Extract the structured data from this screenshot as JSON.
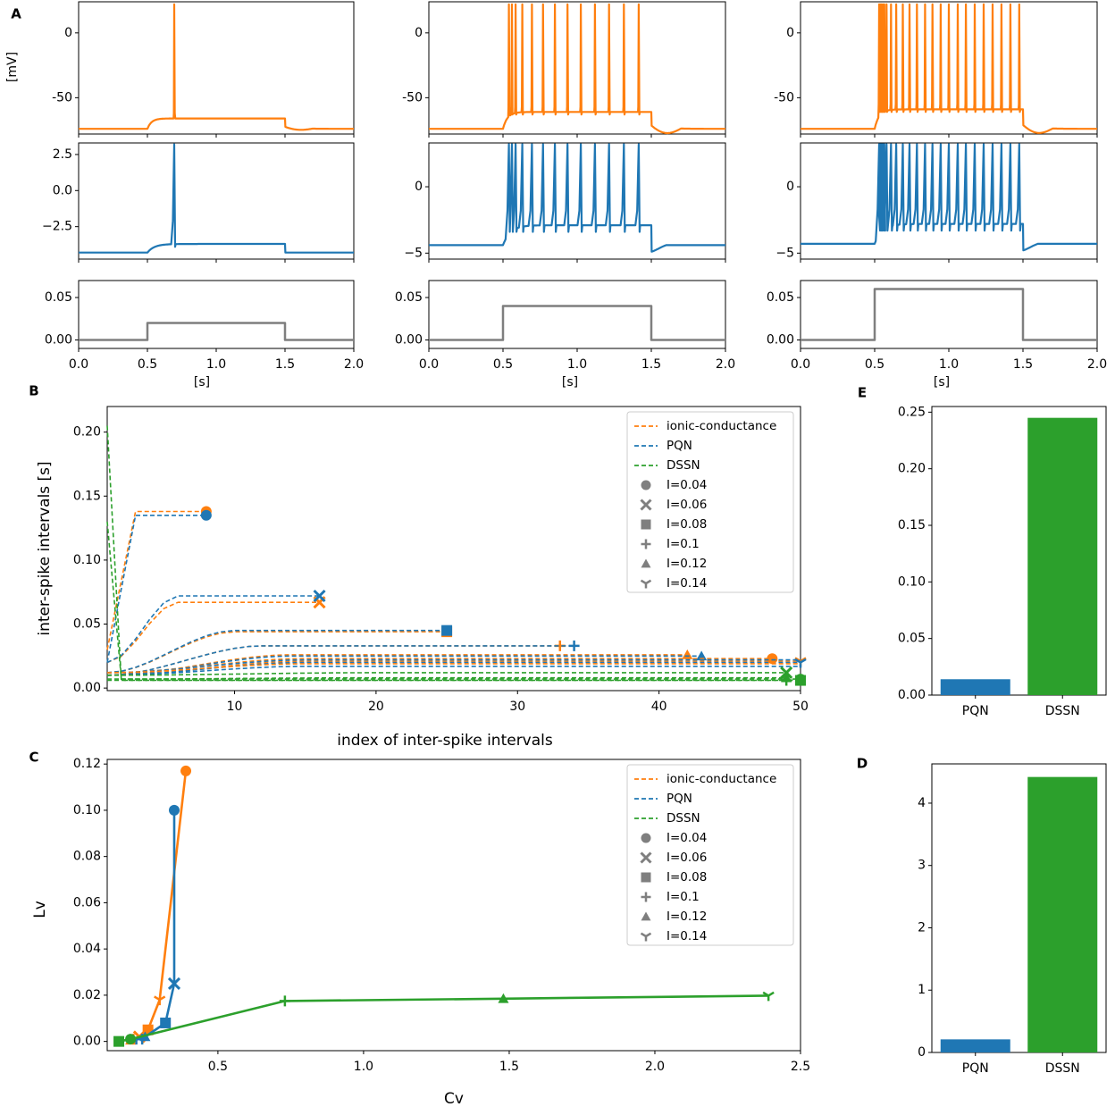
{
  "panel_labels": {
    "A": "A",
    "B": "B",
    "C": "C",
    "D": "D",
    "E": "E"
  },
  "colors": {
    "ionic": "#ff7f0e",
    "pqn": "#1f77b4",
    "dssn": "#2ca02c",
    "stim": "#7f7f7f",
    "marker_gray": "#7f7f7f"
  },
  "chart_data": [
    {
      "id": "A-voltage",
      "type": "line",
      "title": "",
      "ylabel": "[mV]",
      "xlabel": "",
      "ylim": [
        -78,
        24
      ],
      "yticks": [
        "0",
        "-50"
      ],
      "ytick_values": [
        0,
        -50
      ],
      "traces": [
        {
          "current": 0.02,
          "rest": -74,
          "plateau": -66,
          "spike_times": [
            0.695
          ],
          "spike_peak": 22,
          "trough": -60
        },
        {
          "current": 0.04,
          "rest": -74,
          "plateau": -61,
          "spike_times": [
            0.54,
            0.56,
            0.585,
            0.63,
            0.695,
            0.77,
            0.85,
            0.935,
            1.025,
            1.12,
            1.215,
            1.315,
            1.415
          ],
          "spike_peak": 22,
          "trough": -61
        },
        {
          "current": 0.06,
          "rest": -74,
          "plateau": -59,
          "spike_times": [
            0.53,
            0.538,
            0.546,
            0.555,
            0.565,
            0.58,
            0.61,
            0.645,
            0.69,
            0.735,
            0.785,
            0.84,
            0.89,
            0.945,
            1.0,
            1.06,
            1.115,
            1.175,
            1.235,
            1.295,
            1.355,
            1.415,
            1.475
          ],
          "spike_peak": 22,
          "trough": -59
        }
      ]
    },
    {
      "id": "A-pqn",
      "type": "line",
      "title": "",
      "ylabel": "",
      "xlabel": "",
      "ranges": [
        [
          -4.5,
          3.2
        ],
        [
          -5.2,
          3.2
        ],
        [
          -5.2,
          3.2
        ]
      ],
      "yticks": [
        [
          "2.5",
          "0.0",
          "−2.5"
        ],
        [
          "0",
          "−5"
        ],
        [
          "0",
          "−5"
        ]
      ],
      "ytick_values": [
        [
          2.5,
          0.0,
          -2.5
        ],
        [
          0,
          -5
        ],
        [
          0,
          -5
        ]
      ],
      "rests": [
        -4.3,
        -4.4,
        -4.3
      ]
    },
    {
      "id": "A-stim",
      "type": "line",
      "title": "",
      "xlabel": "[s]",
      "ylabel": "",
      "xlim": [
        0,
        2
      ],
      "ylim": [
        -0.01,
        0.07
      ],
      "xticks": [
        "0.0",
        "0.5",
        "1.0",
        "1.5",
        "2.0"
      ],
      "xtick_values": [
        0,
        0.5,
        1.0,
        1.5,
        2.0
      ],
      "yticks": [
        "0.05",
        "0.00"
      ],
      "ytick_values": [
        0.05,
        0.0
      ],
      "stim_on": 0.5,
      "stim_off": 1.5,
      "amplitudes": [
        0.02,
        0.04,
        0.06
      ]
    },
    {
      "id": "B",
      "type": "line",
      "title": "",
      "xlabel": "index of inter-spike intervals",
      "ylabel": "inter-spike intervals [s]",
      "xlim": [
        1,
        50
      ],
      "ylim": [
        -0.002,
        0.22
      ],
      "xticks": [
        "10",
        "20",
        "30",
        "40",
        "50"
      ],
      "xtick_values": [
        10,
        20,
        30,
        40,
        50
      ],
      "yticks": [
        "0.00",
        "0.05",
        "0.10",
        "0.15",
        "0.20"
      ],
      "ytick_values": [
        0,
        0.05,
        0.1,
        0.15,
        0.2
      ],
      "legend": [
        "ionic-conductance",
        "PQN",
        "DSSN",
        "I=0.04",
        "I=0.06",
        "I=0.08",
        "I=0.1",
        "I=0.12",
        "I=0.14"
      ],
      "legend_position": "upper right",
      "series": [
        {
          "model": "ionic",
          "current": 0.04,
          "start": 0.03,
          "final": 0.138,
          "rise_end": 3,
          "n": 8,
          "marker": "circle"
        },
        {
          "model": "pqn",
          "current": 0.04,
          "start": 0.02,
          "final": 0.135,
          "rise_end": 3,
          "n": 8,
          "marker": "circle"
        },
        {
          "model": "ionic",
          "current": 0.06,
          "start": 0.02,
          "final": 0.067,
          "rise_end": 6,
          "n": 16,
          "marker": "x"
        },
        {
          "model": "pqn",
          "current": 0.06,
          "start": 0.02,
          "final": 0.072,
          "rise_end": 6,
          "n": 16,
          "marker": "x"
        },
        {
          "model": "ionic",
          "current": 0.08,
          "start": 0.012,
          "final": 0.044,
          "rise_end": 10,
          "n": 25,
          "marker": "square"
        },
        {
          "model": "pqn",
          "current": 0.08,
          "start": 0.012,
          "final": 0.045,
          "rise_end": 10,
          "n": 25,
          "marker": "square"
        },
        {
          "model": "ionic",
          "current": 0.1,
          "start": 0.01,
          "final": 0.033,
          "rise_end": 12,
          "n": 33,
          "marker": "plus"
        },
        {
          "model": "pqn",
          "current": 0.1,
          "start": 0.01,
          "final": 0.033,
          "rise_end": 12,
          "n": 34,
          "marker": "plus"
        },
        {
          "model": "ionic",
          "current": 0.12,
          "start": 0.01,
          "final": 0.026,
          "rise_end": 14,
          "n": 42,
          "marker": "triangle"
        },
        {
          "model": "pqn",
          "current": 0.12,
          "start": 0.01,
          "final": 0.025,
          "rise_end": 14,
          "n": 43,
          "marker": "triangle"
        },
        {
          "model": "ionic",
          "current": 0.14,
          "start": 0.01,
          "final": 0.021,
          "rise_end": 15,
          "n": 50,
          "marker": "tri"
        },
        {
          "model": "pqn",
          "current": 0.14,
          "start": 0.01,
          "final": 0.02,
          "rise_end": 15,
          "n": 50,
          "marker": "tri"
        },
        {
          "model": "ionic",
          "current": 0.04,
          "start": 0.012,
          "final": 0.023,
          "rise_end": 15,
          "n": 48,
          "marker": "circle"
        },
        {
          "model": "pqn",
          "current": 0.04,
          "start": 0.012,
          "final": 0.022,
          "rise_end": 15,
          "n": 50,
          "marker": "none"
        },
        {
          "model": "ionic",
          "current": 0.06,
          "start": 0.012,
          "final": 0.019,
          "rise_end": 15,
          "n": 50,
          "marker": "none"
        },
        {
          "model": "pqn",
          "current": 0.06,
          "start": 0.01,
          "final": 0.017,
          "rise_end": 15,
          "n": 50,
          "marker": "none"
        },
        {
          "model": "dssn",
          "current": 0.04,
          "start": 0.205,
          "final": 0.006,
          "rise_end": 2,
          "n": 50,
          "marker": "square",
          "drop": true
        },
        {
          "model": "dssn",
          "current": 0.06,
          "start": 0.13,
          "final": 0.007,
          "rise_end": 2,
          "n": 50,
          "marker": "circle",
          "drop": true
        },
        {
          "model": "dssn",
          "current": 0.08,
          "start": 0.01,
          "final": 0.012,
          "rise_end": 20,
          "n": 49,
          "marker": "x"
        },
        {
          "model": "dssn",
          "current": 0.1,
          "start": 0.007,
          "final": 0.008,
          "rise_end": 20,
          "n": 49,
          "marker": "triangle"
        },
        {
          "model": "dssn",
          "current": 0.12,
          "start": 0.006,
          "final": 0.006,
          "rise_end": 20,
          "n": 49,
          "marker": "plus"
        }
      ]
    },
    {
      "id": "C",
      "type": "line",
      "title": "",
      "xlabel": "Cv",
      "ylabel": "Lv",
      "xlim": [
        0.12,
        2.5
      ],
      "ylim": [
        -0.004,
        0.122
      ],
      "xticks": [
        "0.5",
        "1.0",
        "1.5",
        "2.0",
        "2.5"
      ],
      "xtick_values": [
        0.5,
        1.0,
        1.5,
        2.0,
        2.5
      ],
      "yticks": [
        "0.00",
        "0.02",
        "0.04",
        "0.06",
        "0.08",
        "0.10",
        "0.12"
      ],
      "ytick_values": [
        0,
        0.02,
        0.04,
        0.06,
        0.08,
        0.1,
        0.12
      ],
      "legend": [
        "ionic-conductance",
        "PQN",
        "DSSN",
        "I=0.04",
        "I=0.06",
        "I=0.08",
        "I=0.1",
        "I=0.12",
        "I=0.14"
      ],
      "legend_position": "upper right",
      "series": [
        {
          "name": "ionic-conductance",
          "model": "ionic",
          "x": [
            0.39,
            0.3,
            0.26,
            0.23,
            0.21,
            0.2
          ],
          "y": [
            0.117,
            0.018,
            0.005,
            0.002,
            0.001,
            0.0005
          ],
          "markers": [
            "circle",
            "tri",
            "square",
            "x",
            "plus",
            "triangle"
          ]
        },
        {
          "name": "PQN",
          "model": "pqn",
          "x": [
            0.35,
            0.35,
            0.32,
            0.25,
            0.24,
            0.22
          ],
          "y": [
            0.1,
            0.025,
            0.008,
            0.002,
            0.001,
            0.001
          ],
          "markers": [
            "circle",
            "x",
            "square",
            "triangle",
            "plus",
            "tri"
          ]
        },
        {
          "name": "DSSN",
          "model": "dssn",
          "x": [
            0.16,
            0.2,
            0.73,
            1.48,
            2.39
          ],
          "y": [
            0.0,
            0.001,
            0.0175,
            0.0185,
            0.0198
          ],
          "markers": [
            "square",
            "circle",
            "plus",
            "triangle",
            "tri"
          ]
        }
      ]
    },
    {
      "id": "E",
      "type": "bar",
      "title": "",
      "xlabel": "",
      "ylabel": "",
      "categories": [
        "PQN",
        "DSSN"
      ],
      "values": [
        0.014,
        0.245
      ],
      "ylim": [
        0,
        0.255
      ],
      "yticks": [
        "0.00",
        "0.05",
        "0.10",
        "0.15",
        "0.20",
        "0.25"
      ],
      "ytick_values": [
        0,
        0.05,
        0.1,
        0.15,
        0.2,
        0.25
      ]
    },
    {
      "id": "D",
      "type": "bar",
      "title": "",
      "xlabel": "",
      "ylabel": "",
      "categories": [
        "PQN",
        "DSSN"
      ],
      "values": [
        0.21,
        4.42
      ],
      "ylim": [
        0,
        4.63
      ],
      "yticks": [
        "0",
        "1",
        "2",
        "3",
        "4"
      ],
      "ytick_values": [
        0,
        1,
        2,
        3,
        4
      ]
    }
  ]
}
